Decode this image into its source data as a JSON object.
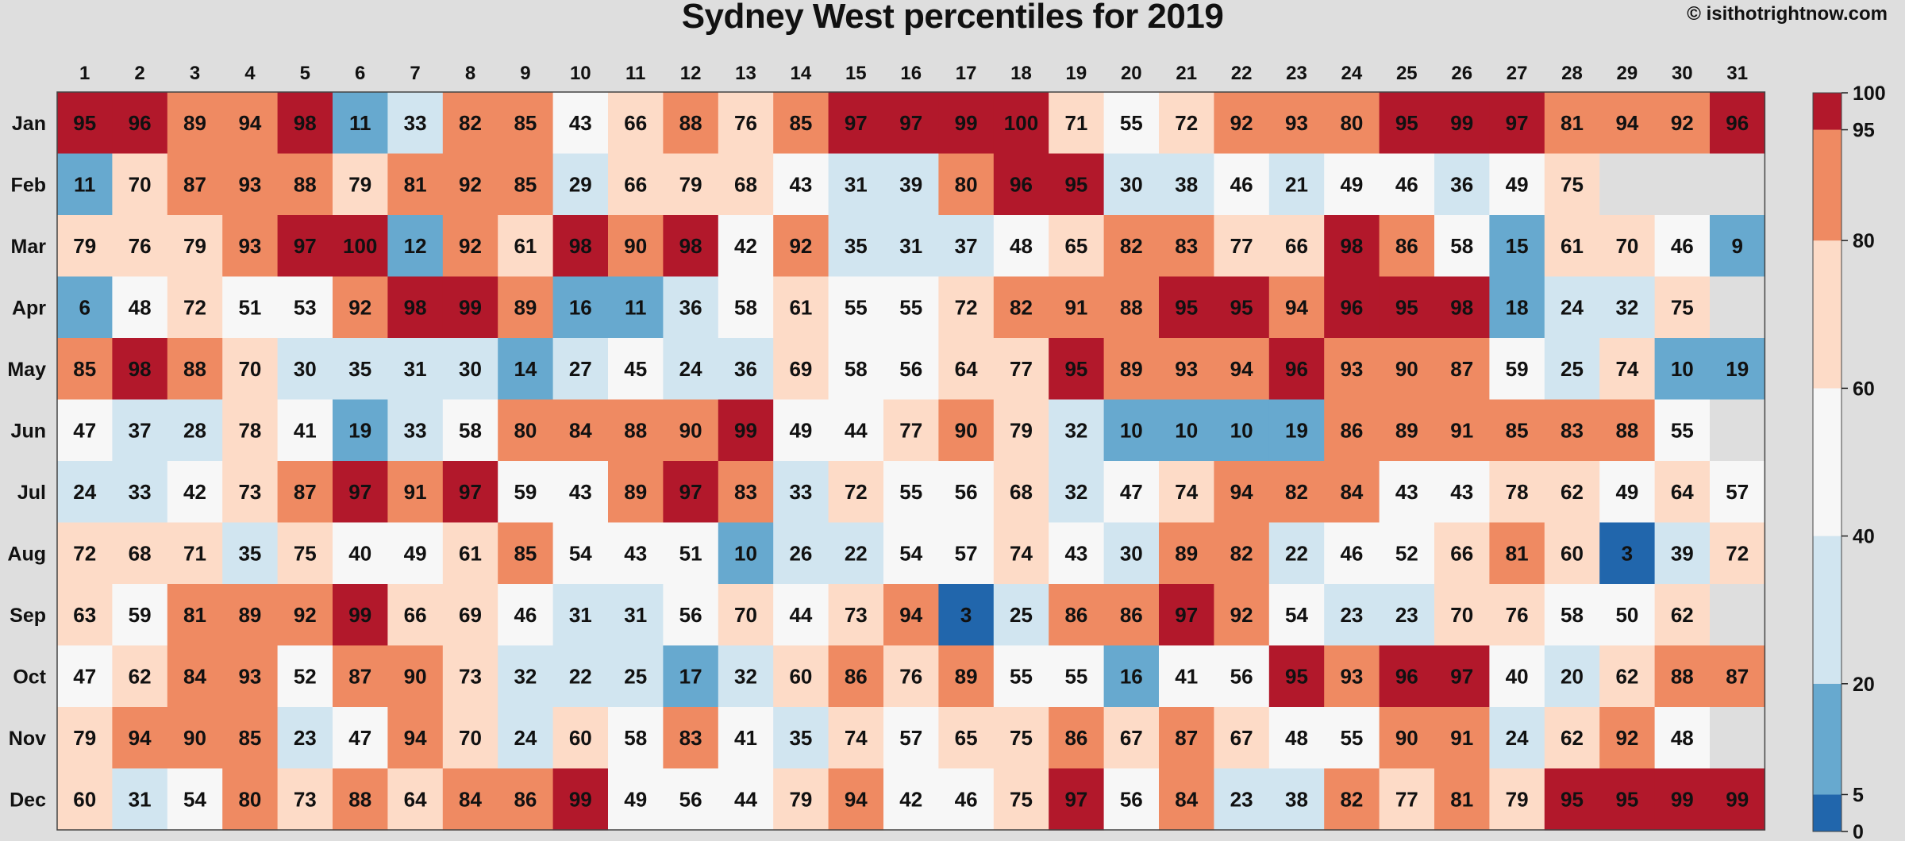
{
  "header": {
    "title": "Sydney West percentiles for 2019",
    "copyright": "© isithotrightnow.com"
  },
  "chart_data": {
    "type": "heatmap",
    "title": "Sydney West percentiles for 2019",
    "x_labels": [
      "1",
      "2",
      "3",
      "4",
      "5",
      "6",
      "7",
      "8",
      "9",
      "10",
      "11",
      "12",
      "13",
      "14",
      "15",
      "16",
      "17",
      "18",
      "19",
      "20",
      "21",
      "22",
      "23",
      "24",
      "25",
      "26",
      "27",
      "28",
      "29",
      "30",
      "31"
    ],
    "y_labels": [
      "Jan",
      "Feb",
      "Mar",
      "Apr",
      "May",
      "Jun",
      "Jul",
      "Aug",
      "Sep",
      "Oct",
      "Nov",
      "Dec"
    ],
    "values": [
      [
        95,
        96,
        89,
        94,
        98,
        11,
        33,
        82,
        85,
        43,
        66,
        88,
        76,
        85,
        97,
        97,
        99,
        100,
        71,
        55,
        72,
        92,
        93,
        80,
        95,
        99,
        97,
        81,
        94,
        92,
        96
      ],
      [
        11,
        70,
        87,
        93,
        88,
        79,
        81,
        92,
        85,
        29,
        66,
        79,
        68,
        43,
        31,
        39,
        80,
        96,
        95,
        30,
        38,
        46,
        21,
        49,
        46,
        36,
        49,
        75,
        null,
        null,
        null
      ],
      [
        79,
        76,
        79,
        93,
        97,
        100,
        12,
        92,
        61,
        98,
        90,
        98,
        42,
        92,
        35,
        31,
        37,
        48,
        65,
        82,
        83,
        77,
        66,
        98,
        86,
        58,
        15,
        61,
        70,
        46,
        9
      ],
      [
        6,
        48,
        72,
        51,
        53,
        92,
        98,
        99,
        89,
        16,
        11,
        36,
        58,
        61,
        55,
        55,
        72,
        82,
        91,
        88,
        95,
        95,
        94,
        96,
        95,
        98,
        18,
        24,
        32,
        75,
        null
      ],
      [
        85,
        98,
        88,
        70,
        30,
        35,
        31,
        30,
        14,
        27,
        45,
        24,
        36,
        69,
        58,
        56,
        64,
        77,
        95,
        89,
        93,
        94,
        96,
        93,
        90,
        87,
        59,
        25,
        74,
        10,
        19
      ],
      [
        47,
        37,
        28,
        78,
        41,
        19,
        33,
        58,
        80,
        84,
        88,
        90,
        99,
        49,
        44,
        77,
        90,
        79,
        32,
        10,
        10,
        10,
        19,
        86,
        89,
        91,
        85,
        83,
        88,
        55,
        null
      ],
      [
        24,
        33,
        42,
        73,
        87,
        97,
        91,
        97,
        59,
        43,
        89,
        97,
        83,
        33,
        72,
        55,
        56,
        68,
        32,
        47,
        74,
        94,
        82,
        84,
        43,
        43,
        78,
        62,
        49,
        64,
        57
      ],
      [
        72,
        68,
        71,
        35,
        75,
        40,
        49,
        61,
        85,
        54,
        43,
        51,
        10,
        26,
        22,
        54,
        57,
        74,
        43,
        30,
        89,
        82,
        22,
        46,
        52,
        66,
        81,
        60,
        3,
        39,
        72
      ],
      [
        63,
        59,
        81,
        89,
        92,
        99,
        66,
        69,
        46,
        31,
        31,
        56,
        70,
        44,
        73,
        94,
        3,
        25,
        86,
        86,
        97,
        92,
        54,
        23,
        23,
        70,
        76,
        58,
        50,
        62,
        null
      ],
      [
        47,
        62,
        84,
        93,
        52,
        87,
        90,
        73,
        32,
        22,
        25,
        17,
        32,
        60,
        86,
        76,
        89,
        55,
        55,
        16,
        41,
        56,
        95,
        93,
        96,
        97,
        40,
        20,
        62,
        88,
        87
      ],
      [
        79,
        94,
        90,
        85,
        23,
        47,
        94,
        70,
        24,
        60,
        58,
        83,
        41,
        35,
        74,
        57,
        65,
        75,
        86,
        67,
        87,
        67,
        48,
        55,
        90,
        91,
        24,
        62,
        92,
        48,
        null
      ],
      [
        60,
        31,
        54,
        80,
        73,
        88,
        64,
        84,
        86,
        99,
        49,
        56,
        44,
        79,
        94,
        42,
        46,
        75,
        97,
        56,
        84,
        23,
        38,
        82,
        77,
        81,
        79,
        95,
        95,
        99,
        99
      ]
    ],
    "color_scale": {
      "breaks": [
        0,
        5,
        20,
        40,
        60,
        80,
        95,
        100
      ],
      "colors": [
        "#2166ac",
        "#67a9cf",
        "#d1e5f0",
        "#f7f7f7",
        "#fddbc7",
        "#ef8a62",
        "#b2182b"
      ],
      "missing": "#dedede"
    },
    "colorbar_ticks": [
      "100",
      "95",
      "80",
      "60",
      "40",
      "20",
      "5",
      "0"
    ]
  }
}
